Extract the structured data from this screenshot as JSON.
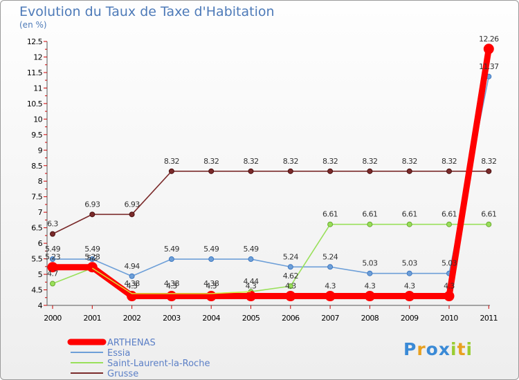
{
  "chart_data": {
    "type": "line",
    "title": "Evolution du Taux de Taxe d'Habitation",
    "subtitle": "(en %)",
    "categories": [
      "2000",
      "2001",
      "2002",
      "2003",
      "2004",
      "2005",
      "2006",
      "2007",
      "2008",
      "2009",
      "2010",
      "2011"
    ],
    "ylim": [
      4,
      12.5
    ],
    "yticks": [
      "4",
      "4.5",
      "5",
      "5.5",
      "6",
      "6.5",
      "7",
      "7.5",
      "8",
      "8.5",
      "9",
      "9.5",
      "10",
      "10.5",
      "11",
      "11.5",
      "12",
      "12.5"
    ],
    "grid": false,
    "legend_position": "bottom-left",
    "series": [
      {
        "name": "ARTHENAS",
        "color": "#ff0000",
        "values": [
          5.23,
          5.23,
          4.3,
          4.3,
          4.3,
          4.3,
          4.3,
          4.3,
          4.3,
          4.3,
          4.3,
          12.26
        ],
        "labels": [
          "5.23",
          "5.23",
          "4.3",
          "4.3",
          "4.3",
          "4.3",
          "4.3",
          "4.3",
          "4.3",
          "4.3",
          "4.3",
          "12.26"
        ]
      },
      {
        "name": "Essia",
        "color": "#6d9fd8",
        "values": [
          5.49,
          5.49,
          4.94,
          5.49,
          5.49,
          5.49,
          5.24,
          5.24,
          5.03,
          5.03,
          5.03,
          11.37
        ],
        "labels": [
          "5.49",
          "5.49",
          "4.94",
          "5.49",
          "5.49",
          "5.49",
          "5.24",
          "5.24",
          "5.03",
          "5.03",
          "5.03",
          "11.37"
        ]
      },
      {
        "name": "Saint-Laurent-la-Roche",
        "color": "#99e05a",
        "values": [
          4.7,
          5.2,
          4.38,
          4.38,
          4.38,
          4.44,
          4.62,
          6.61,
          6.61,
          6.61,
          6.61,
          6.61
        ],
        "labels": [
          "4.7",
          "5.2",
          "4.38",
          "4.38",
          "4.38",
          "4.44",
          "4.62",
          "6.61",
          "6.61",
          "6.61",
          "6.61",
          "6.61"
        ]
      },
      {
        "name": "Grusse",
        "color": "#7a2a2a",
        "values": [
          6.3,
          6.93,
          6.93,
          8.32,
          8.32,
          8.32,
          8.32,
          8.32,
          8.32,
          8.32,
          8.32,
          8.32
        ],
        "labels": [
          "6.3",
          "6.93",
          "6.93",
          "8.32",
          "8.32",
          "8.32",
          "8.32",
          "8.32",
          "8.32",
          "8.32",
          "8.32",
          "8.32"
        ]
      }
    ]
  },
  "logo": {
    "letters": [
      "P",
      "r",
      "o",
      "x",
      "i",
      "t",
      "i"
    ],
    "colors": [
      "#3a8ad6",
      "#e8a020",
      "#3a8ad6",
      "#3a8ad6",
      "#9acd32",
      "#e8a020",
      "#9acd32"
    ]
  }
}
